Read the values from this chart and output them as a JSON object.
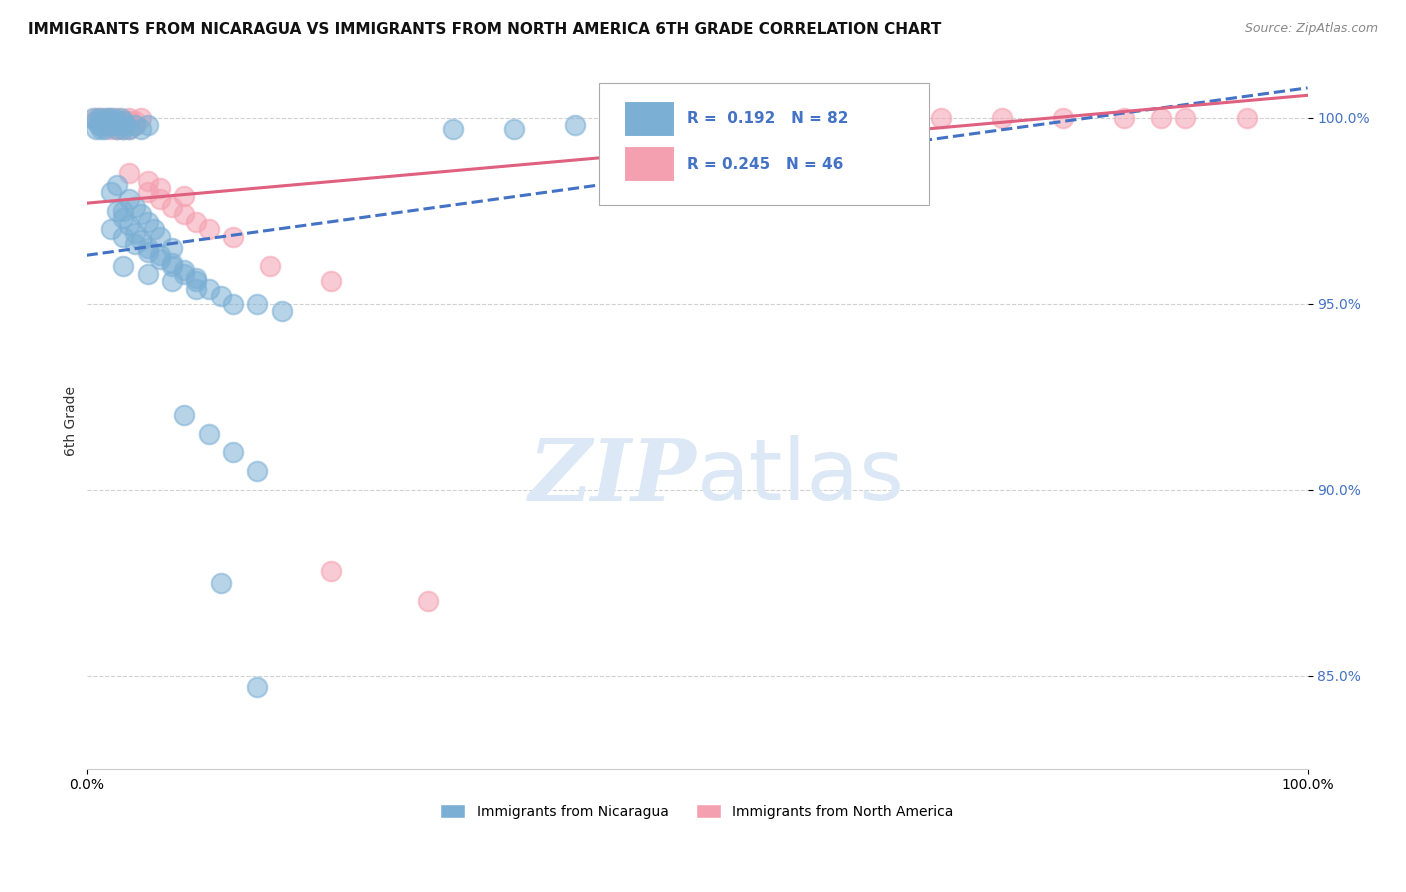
{
  "title": "IMMIGRANTS FROM NICARAGUA VS IMMIGRANTS FROM NORTH AMERICA 6TH GRADE CORRELATION CHART",
  "source": "Source: ZipAtlas.com",
  "ylabel": "6th Grade",
  "xlim": [
    0.0,
    1.0
  ],
  "ylim": [
    0.825,
    1.012
  ],
  "yticks": [
    0.85,
    0.9,
    0.95,
    1.0
  ],
  "ytick_labels": [
    "85.0%",
    "90.0%",
    "95.0%",
    "100.0%"
  ],
  "xticks": [
    0.0,
    1.0
  ],
  "xtick_labels": [
    "0.0%",
    "100.0%"
  ],
  "blue_R": 0.192,
  "blue_N": 82,
  "pink_R": 0.245,
  "pink_N": 46,
  "blue_color": "#7BAFD4",
  "pink_color": "#F4A0B0",
  "blue_line_color": "#4472C4",
  "pink_line_color": "#E06080",
  "legend_label_blue": "Immigrants from Nicaragua",
  "legend_label_pink": "Immigrants from North America",
  "background_color": "#ffffff",
  "grid_color": "#cccccc",
  "title_fontsize": 11,
  "axis_label_fontsize": 10,
  "tick_fontsize": 10,
  "source_fontsize": 9,
  "watermark_color": "#dce8f5",
  "blue_line_x": [
    0.0,
    1.0
  ],
  "blue_line_y": [
    0.963,
    1.008
  ],
  "pink_line_x": [
    0.0,
    1.0
  ],
  "pink_line_y": [
    0.977,
    1.006
  ]
}
